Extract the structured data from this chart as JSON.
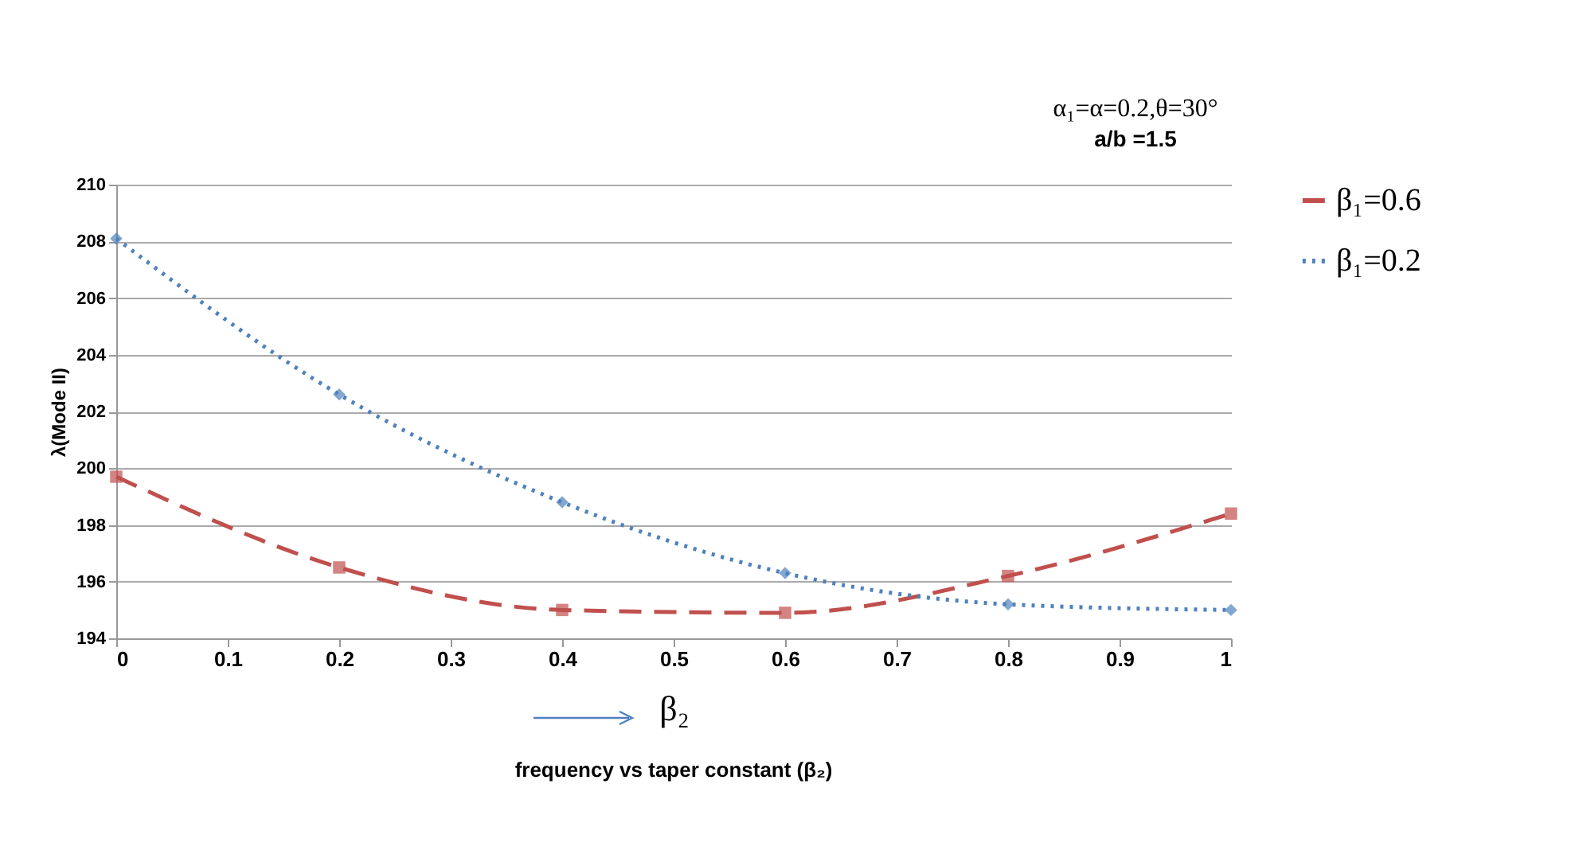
{
  "chart_data": {
    "type": "line",
    "title": "frequency vs taper constant (β₂)",
    "xlabel": "β₂",
    "ylabel": "λ(Mode II)",
    "annotations": [
      "α₁=α=0.2,θ=30°",
      "a/b =1.5"
    ],
    "x": [
      0,
      0.2,
      0.4,
      0.6,
      0.8,
      1
    ],
    "series": [
      {
        "name": "β₁=0.6",
        "color": "#c0504d",
        "values": [
          199.7,
          196.5,
          195.0,
          194.9,
          196.2,
          198.4
        ],
        "marker": "square",
        "line_style": "dashed"
      },
      {
        "name": "β₁=0.2",
        "color": "#4f81bd",
        "values": [
          208.1,
          202.6,
          198.8,
          196.3,
          195.2,
          195.0
        ],
        "marker": "diamond",
        "line_style": "dotted"
      }
    ],
    "xlim": [
      0,
      1
    ],
    "xticks": [
      0,
      0.1,
      0.2,
      0.3,
      0.4,
      0.5,
      0.6,
      0.7,
      0.8,
      0.9,
      1
    ],
    "ylim": [
      194,
      210
    ],
    "yticks": [
      194,
      196,
      198,
      200,
      202,
      204,
      206,
      208,
      210
    ],
    "grid": "y",
    "legend": "right"
  }
}
